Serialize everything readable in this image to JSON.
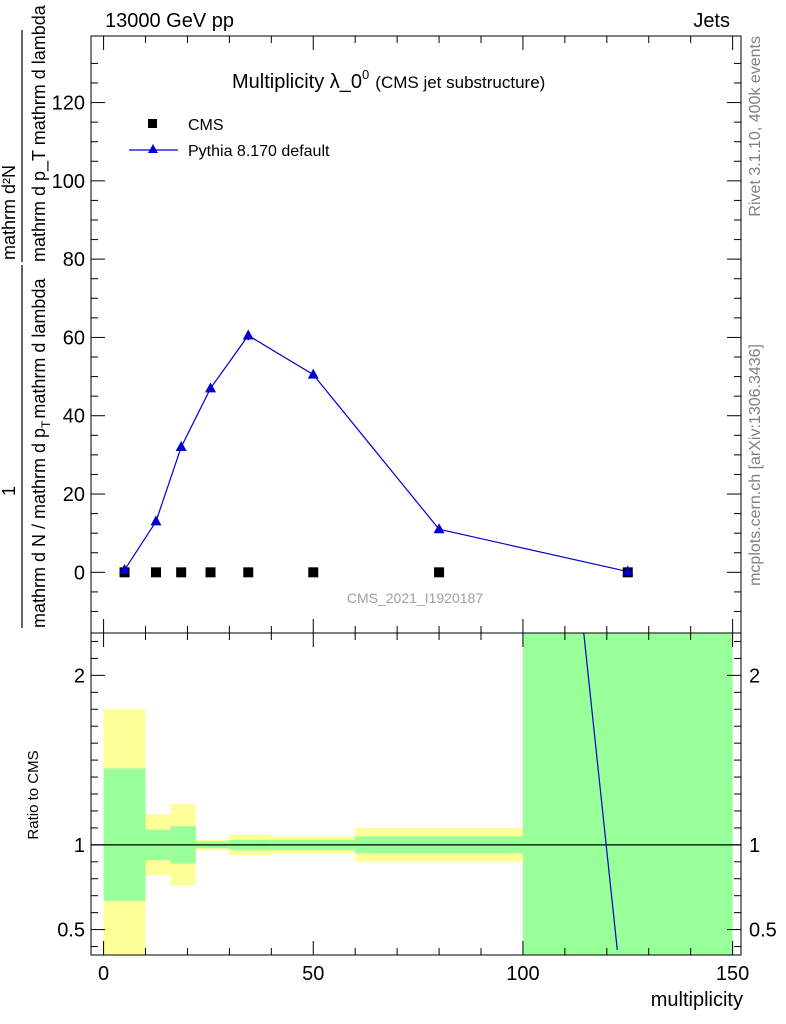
{
  "header": {
    "left": "13000 GeV pp",
    "right": "Jets"
  },
  "side_labels": {
    "rivet": "Rivet 3.1.10,  400k events",
    "mcplots": "mcplots.cern.ch [arXiv:1306.3436]"
  },
  "watermark": "CMS_2021_I1920187",
  "colors": {
    "mc": "#0000cc",
    "band_inner": "#99ff99",
    "band_outer": "#ffff99"
  },
  "chart_data": [
    {
      "type": "scatter",
      "title": {
        "main": "Multiplicity λ_0",
        "sup": "0",
        "paren": "(CMS jet substructure)"
      },
      "ylabel": {
        "num": "mathrm d²N",
        "den": "mathrm d p_T mathrm d lambda",
        "left_part1": "mathrm d N / mathrm d p",
        "left_sub": "T",
        "left_part2": "mathrm d lambda",
        "one": "1"
      },
      "xlim": [
        -3,
        152
      ],
      "ylim": [
        -15.5,
        137
      ],
      "yticks": [
        0,
        20,
        40,
        60,
        80,
        100,
        120
      ],
      "legend": {
        "position": "top-left",
        "data_label": "CMS",
        "mc_label": "Pythia 8.170 default"
      },
      "series": [
        {
          "name": "CMS",
          "marker": "square",
          "x": [
            5,
            12.5,
            18.5,
            25.5,
            34.5,
            50,
            80,
            125
          ],
          "y": [
            0,
            0,
            0,
            0,
            0,
            0,
            0,
            0
          ]
        },
        {
          "name": "Pythia 8.170 default",
          "marker": "triangle",
          "x": [
            5,
            12.5,
            18.5,
            25.5,
            34.5,
            50,
            80,
            125
          ],
          "y": [
            0.6,
            13,
            32,
            47,
            60.5,
            50.5,
            11,
            0.2
          ],
          "yerr": [
            0.3,
            0.4,
            0.9,
            0.9,
            1.2,
            0.5,
            0.2,
            0.1
          ]
        }
      ]
    },
    {
      "type": "line",
      "ylabel": "Ratio to CMS",
      "xlabel": "multiplicity",
      "xlim": [
        -3,
        152
      ],
      "ylim": [
        0.35,
        2.25
      ],
      "xticks": [
        0,
        50,
        100,
        150
      ],
      "yticks": [
        0.5,
        1,
        2
      ],
      "reference": 1,
      "bands": [
        {
          "x0": 0,
          "x1": 10,
          "inner": [
            0.67,
            1.45
          ],
          "outer": [
            0.3,
            1.8
          ]
        },
        {
          "x0": 10,
          "x1": 16,
          "inner": [
            0.91,
            1.09
          ],
          "outer": [
            0.82,
            1.18
          ]
        },
        {
          "x0": 16,
          "x1": 22,
          "inner": [
            0.89,
            1.11
          ],
          "outer": [
            0.76,
            1.24
          ]
        },
        {
          "x0": 22,
          "x1": 30,
          "inner": [
            0.98,
            1.02
          ],
          "outer": [
            0.97,
            1.03
          ]
        },
        {
          "x0": 30,
          "x1": 40,
          "inner": [
            0.97,
            1.03
          ],
          "outer": [
            0.94,
            1.06
          ]
        },
        {
          "x0": 40,
          "x1": 60,
          "inner": [
            0.97,
            1.03
          ],
          "outer": [
            0.95,
            1.05
          ]
        },
        {
          "x0": 60,
          "x1": 100,
          "inner": [
            0.95,
            1.05
          ],
          "outer": [
            0.9,
            1.1
          ]
        },
        {
          "x0": 100,
          "x1": 150,
          "inner": [
            0.3,
            2.3
          ],
          "outer": [
            0.3,
            2.3
          ]
        }
      ],
      "mc_ratio": {
        "x": [
          114.5,
          122.5
        ],
        "y": [
          2.3,
          0.38
        ]
      }
    }
  ]
}
